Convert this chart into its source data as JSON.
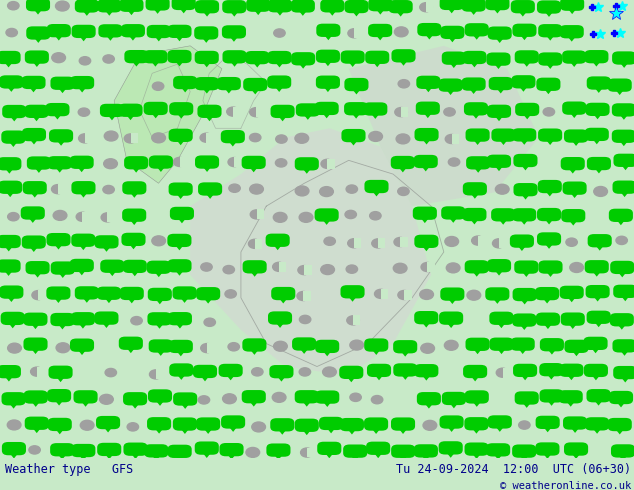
{
  "title_left": "Weather type   GFS",
  "title_right": "Tu 24-09-2024  12:00  UTC (06+30)",
  "copyright": "© weatheronline.co.uk",
  "fig_width": 6.34,
  "fig_height": 4.9,
  "dpi": 100,
  "footer_text_color": "#00008B",
  "map_bg_light_green": "#d4edcc",
  "map_bg_gray": "#d8d8d8",
  "map_bg_white": "#f0f0f0",
  "gray_symbol_color": "#a0a0a0",
  "green_symbol_color": "#00cc00",
  "footer_bg": "#cccccc",
  "grid_nx": 26,
  "grid_ny": 18,
  "seed": 7
}
